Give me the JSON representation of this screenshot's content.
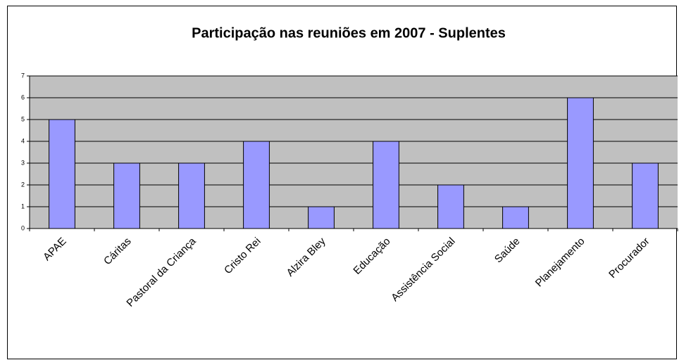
{
  "chart_data": {
    "type": "bar",
    "title": "Participação nas reuniões em 2007 - Suplentes",
    "categories": [
      "APAE",
      "Cáritas",
      "Pastoral da Criança",
      "Cristo Rei",
      "Alzira Bley",
      "Educação",
      "Assistência Social",
      "Saúde",
      "Planejamento",
      "Procurador"
    ],
    "values": [
      5,
      3,
      3,
      4,
      1,
      4,
      2,
      1,
      6,
      3
    ],
    "color": "#9999ff",
    "plot_color": "#c0c0c0",
    "ylim": [
      0,
      7
    ],
    "yticks": [
      0,
      1,
      2,
      3,
      4,
      5,
      6,
      7
    ],
    "grid": true
  }
}
